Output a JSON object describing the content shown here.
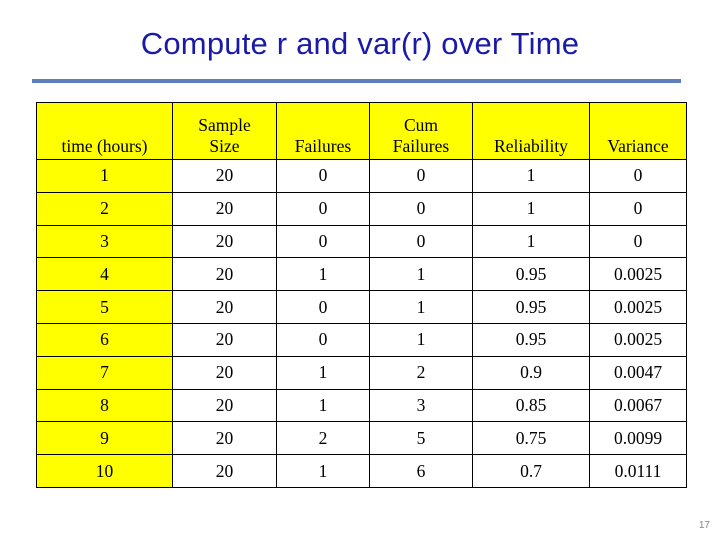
{
  "title": "Compute r and var(r) over Time",
  "table": {
    "headers": [
      [
        "time (hours)"
      ],
      [
        "Sample",
        "Size"
      ],
      [
        "Failures"
      ],
      [
        "Cum",
        "Failures"
      ],
      [
        "Reliability"
      ],
      [
        "Variance"
      ]
    ],
    "rows": [
      [
        "1",
        "20",
        "0",
        "0",
        "1",
        "0"
      ],
      [
        "2",
        "20",
        "0",
        "0",
        "1",
        "0"
      ],
      [
        "3",
        "20",
        "0",
        "0",
        "1",
        "0"
      ],
      [
        "4",
        "20",
        "1",
        "1",
        "0.95",
        "0.0025"
      ],
      [
        "5",
        "20",
        "0",
        "1",
        "0.95",
        "0.0025"
      ],
      [
        "6",
        "20",
        "0",
        "1",
        "0.95",
        "0.0025"
      ],
      [
        "7",
        "20",
        "1",
        "2",
        "0.9",
        "0.0047"
      ],
      [
        "8",
        "20",
        "1",
        "3",
        "0.85",
        "0.0067"
      ],
      [
        "9",
        "20",
        "2",
        "5",
        "0.75",
        "0.0099"
      ],
      [
        "10",
        "20",
        "1",
        "6",
        "0.7",
        "0.0111"
      ]
    ]
  },
  "page_number": "17",
  "colors": {
    "title": "#1a1aa8",
    "rule": "#5b80bd",
    "highlight": "#ffff00"
  }
}
